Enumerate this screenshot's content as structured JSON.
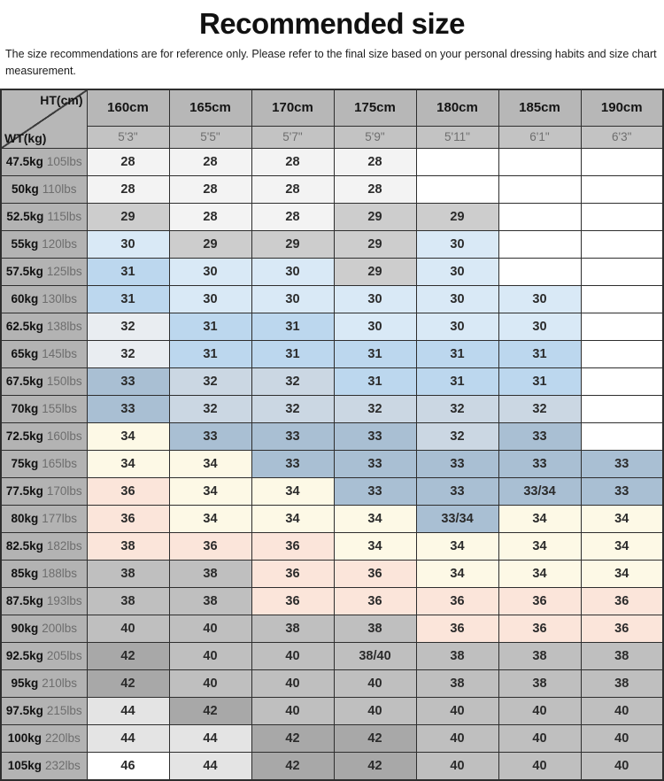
{
  "title": "Recommended size",
  "subtitle": "The size recommendations are for reference only. Please refer to the final size based on your personal dressing habits and size chart measurement.",
  "colors": {
    "w": "#ffffff",
    "f0": "#f3f3f3",
    "gMid": "#cdcdcd",
    "gCell": "#bfbfbf",
    "gDark": "#a8a8a8",
    "g44": "#e4e4e4",
    "blue1": "#d9e9f6",
    "blue2": "#bcd7ee",
    "blue3": "#a9bfd3",
    "blue4": "#cbd7e3",
    "blueGray": "#e9edf1",
    "cream": "#fdf9e6",
    "pink": "#fbe5da"
  },
  "chart_data": {
    "type": "table",
    "title": "Recommended size",
    "corner_top": "HT(cm)",
    "corner_bottom": "WT(kg)",
    "columns_cm": [
      "160cm",
      "165cm",
      "170cm",
      "175cm",
      "180cm",
      "185cm",
      "190cm"
    ],
    "columns_ft": [
      "5'3\"",
      "5'5\"",
      "5'7\"",
      "5'9\"",
      "5'11\"",
      "6'1\"",
      "6'3\""
    ],
    "rows": [
      {
        "kg": "47.5kg",
        "lbs": "105lbs",
        "cells": [
          {
            "v": "28",
            "c": "f0"
          },
          {
            "v": "28",
            "c": "f0"
          },
          {
            "v": "28",
            "c": "f0"
          },
          {
            "v": "28",
            "c": "f0"
          },
          {
            "v": "",
            "c": "w"
          },
          {
            "v": "",
            "c": "w"
          },
          {
            "v": "",
            "c": "w"
          }
        ]
      },
      {
        "kg": "50kg",
        "lbs": "110lbs",
        "cells": [
          {
            "v": "28",
            "c": "f0"
          },
          {
            "v": "28",
            "c": "f0"
          },
          {
            "v": "28",
            "c": "f0"
          },
          {
            "v": "28",
            "c": "f0"
          },
          {
            "v": "",
            "c": "w"
          },
          {
            "v": "",
            "c": "w"
          },
          {
            "v": "",
            "c": "w"
          }
        ]
      },
      {
        "kg": "52.5kg",
        "lbs": "115lbs",
        "cells": [
          {
            "v": "29",
            "c": "gMid"
          },
          {
            "v": "28",
            "c": "f0"
          },
          {
            "v": "28",
            "c": "f0"
          },
          {
            "v": "29",
            "c": "gMid"
          },
          {
            "v": "29",
            "c": "gMid"
          },
          {
            "v": "",
            "c": "w"
          },
          {
            "v": "",
            "c": "w"
          }
        ]
      },
      {
        "kg": "55kg",
        "lbs": "120lbs",
        "cells": [
          {
            "v": "30",
            "c": "blue1"
          },
          {
            "v": "29",
            "c": "gMid"
          },
          {
            "v": "29",
            "c": "gMid"
          },
          {
            "v": "29",
            "c": "gMid"
          },
          {
            "v": "30",
            "c": "blue1"
          },
          {
            "v": "",
            "c": "w"
          },
          {
            "v": "",
            "c": "w"
          }
        ]
      },
      {
        "kg": "57.5kg",
        "lbs": "125lbs",
        "cells": [
          {
            "v": "31",
            "c": "blue2"
          },
          {
            "v": "30",
            "c": "blue1"
          },
          {
            "v": "30",
            "c": "blue1"
          },
          {
            "v": "29",
            "c": "gMid"
          },
          {
            "v": "30",
            "c": "blue1"
          },
          {
            "v": "",
            "c": "w"
          },
          {
            "v": "",
            "c": "w"
          }
        ]
      },
      {
        "kg": "60kg",
        "lbs": "130lbs",
        "cells": [
          {
            "v": "31",
            "c": "blue2"
          },
          {
            "v": "30",
            "c": "blue1"
          },
          {
            "v": "30",
            "c": "blue1"
          },
          {
            "v": "30",
            "c": "blue1"
          },
          {
            "v": "30",
            "c": "blue1"
          },
          {
            "v": "30",
            "c": "blue1"
          },
          {
            "v": "",
            "c": "w"
          }
        ]
      },
      {
        "kg": "62.5kg",
        "lbs": "138lbs",
        "cells": [
          {
            "v": "32",
            "c": "blueGray"
          },
          {
            "v": "31",
            "c": "blue2"
          },
          {
            "v": "31",
            "c": "blue2"
          },
          {
            "v": "30",
            "c": "blue1"
          },
          {
            "v": "30",
            "c": "blue1"
          },
          {
            "v": "30",
            "c": "blue1"
          },
          {
            "v": "",
            "c": "w"
          }
        ]
      },
      {
        "kg": "65kg",
        "lbs": "145lbs",
        "cells": [
          {
            "v": "32",
            "c": "blueGray"
          },
          {
            "v": "31",
            "c": "blue2"
          },
          {
            "v": "31",
            "c": "blue2"
          },
          {
            "v": "31",
            "c": "blue2"
          },
          {
            "v": "31",
            "c": "blue2"
          },
          {
            "v": "31",
            "c": "blue2"
          },
          {
            "v": "",
            "c": "w"
          }
        ]
      },
      {
        "kg": "67.5kg",
        "lbs": "150lbs",
        "cells": [
          {
            "v": "33",
            "c": "blue3"
          },
          {
            "v": "32",
            "c": "blue4"
          },
          {
            "v": "32",
            "c": "blue4"
          },
          {
            "v": "31",
            "c": "blue2"
          },
          {
            "v": "31",
            "c": "blue2"
          },
          {
            "v": "31",
            "c": "blue2"
          },
          {
            "v": "",
            "c": "w"
          }
        ]
      },
      {
        "kg": "70kg",
        "lbs": "155lbs",
        "cells": [
          {
            "v": "33",
            "c": "blue3"
          },
          {
            "v": "32",
            "c": "blue4"
          },
          {
            "v": "32",
            "c": "blue4"
          },
          {
            "v": "32",
            "c": "blue4"
          },
          {
            "v": "32",
            "c": "blue4"
          },
          {
            "v": "32",
            "c": "blue4"
          },
          {
            "v": "",
            "c": "w"
          }
        ]
      },
      {
        "kg": "72.5kg",
        "lbs": "160lbs",
        "cells": [
          {
            "v": "34",
            "c": "cream"
          },
          {
            "v": "33",
            "c": "blue3"
          },
          {
            "v": "33",
            "c": "blue3"
          },
          {
            "v": "33",
            "c": "blue3"
          },
          {
            "v": "32",
            "c": "blue4"
          },
          {
            "v": "33",
            "c": "blue3"
          },
          {
            "v": "",
            "c": "w"
          }
        ]
      },
      {
        "kg": "75kg",
        "lbs": "165lbs",
        "cells": [
          {
            "v": "34",
            "c": "cream"
          },
          {
            "v": "34",
            "c": "cream"
          },
          {
            "v": "33",
            "c": "blue3"
          },
          {
            "v": "33",
            "c": "blue3"
          },
          {
            "v": "33",
            "c": "blue3"
          },
          {
            "v": "33",
            "c": "blue3"
          },
          {
            "v": "33",
            "c": "blue3"
          }
        ]
      },
      {
        "kg": "77.5kg",
        "lbs": "170lbs",
        "cells": [
          {
            "v": "36",
            "c": "pink"
          },
          {
            "v": "34",
            "c": "cream"
          },
          {
            "v": "34",
            "c": "cream"
          },
          {
            "v": "33",
            "c": "blue3"
          },
          {
            "v": "33",
            "c": "blue3"
          },
          {
            "v": "33/34",
            "c": "blue3"
          },
          {
            "v": "33",
            "c": "blue3"
          }
        ]
      },
      {
        "kg": "80kg",
        "lbs": "177lbs",
        "cells": [
          {
            "v": "36",
            "c": "pink"
          },
          {
            "v": "34",
            "c": "cream"
          },
          {
            "v": "34",
            "c": "cream"
          },
          {
            "v": "34",
            "c": "cream"
          },
          {
            "v": "33/34",
            "c": "blue3"
          },
          {
            "v": "34",
            "c": "cream"
          },
          {
            "v": "34",
            "c": "cream"
          }
        ]
      },
      {
        "kg": "82.5kg",
        "lbs": "182lbs",
        "cells": [
          {
            "v": "38",
            "c": "pink"
          },
          {
            "v": "36",
            "c": "pink"
          },
          {
            "v": "36",
            "c": "pink"
          },
          {
            "v": "34",
            "c": "cream"
          },
          {
            "v": "34",
            "c": "cream"
          },
          {
            "v": "34",
            "c": "cream"
          },
          {
            "v": "34",
            "c": "cream"
          }
        ]
      },
      {
        "kg": "85kg",
        "lbs": "188lbs",
        "cells": [
          {
            "v": "38",
            "c": "gCell"
          },
          {
            "v": "38",
            "c": "gCell"
          },
          {
            "v": "36",
            "c": "pink"
          },
          {
            "v": "36",
            "c": "pink"
          },
          {
            "v": "34",
            "c": "cream"
          },
          {
            "v": "34",
            "c": "cream"
          },
          {
            "v": "34",
            "c": "cream"
          }
        ]
      },
      {
        "kg": "87.5kg",
        "lbs": "193lbs",
        "cells": [
          {
            "v": "38",
            "c": "gCell"
          },
          {
            "v": "38",
            "c": "gCell"
          },
          {
            "v": "36",
            "c": "pink"
          },
          {
            "v": "36",
            "c": "pink"
          },
          {
            "v": "36",
            "c": "pink"
          },
          {
            "v": "36",
            "c": "pink"
          },
          {
            "v": "36",
            "c": "pink"
          }
        ]
      },
      {
        "kg": "90kg",
        "lbs": "200lbs",
        "cells": [
          {
            "v": "40",
            "c": "gCell"
          },
          {
            "v": "40",
            "c": "gCell"
          },
          {
            "v": "38",
            "c": "gCell"
          },
          {
            "v": "38",
            "c": "gCell"
          },
          {
            "v": "36",
            "c": "pink"
          },
          {
            "v": "36",
            "c": "pink"
          },
          {
            "v": "36",
            "c": "pink"
          }
        ]
      },
      {
        "kg": "92.5kg",
        "lbs": "205lbs",
        "cells": [
          {
            "v": "42",
            "c": "gDark"
          },
          {
            "v": "40",
            "c": "gCell"
          },
          {
            "v": "40",
            "c": "gCell"
          },
          {
            "v": "38/40",
            "c": "gCell"
          },
          {
            "v": "38",
            "c": "gCell"
          },
          {
            "v": "38",
            "c": "gCell"
          },
          {
            "v": "38",
            "c": "gCell"
          }
        ]
      },
      {
        "kg": "95kg",
        "lbs": "210lbs",
        "cells": [
          {
            "v": "42",
            "c": "gDark"
          },
          {
            "v": "40",
            "c": "gCell"
          },
          {
            "v": "40",
            "c": "gCell"
          },
          {
            "v": "40",
            "c": "gCell"
          },
          {
            "v": "38",
            "c": "gCell"
          },
          {
            "v": "38",
            "c": "gCell"
          },
          {
            "v": "38",
            "c": "gCell"
          }
        ]
      },
      {
        "kg": "97.5kg",
        "lbs": "215lbs",
        "cells": [
          {
            "v": "44",
            "c": "g44"
          },
          {
            "v": "42",
            "c": "gDark"
          },
          {
            "v": "40",
            "c": "gCell"
          },
          {
            "v": "40",
            "c": "gCell"
          },
          {
            "v": "40",
            "c": "gCell"
          },
          {
            "v": "40",
            "c": "gCell"
          },
          {
            "v": "40",
            "c": "gCell"
          }
        ]
      },
      {
        "kg": "100kg",
        "lbs": "220lbs",
        "cells": [
          {
            "v": "44",
            "c": "g44"
          },
          {
            "v": "44",
            "c": "g44"
          },
          {
            "v": "42",
            "c": "gDark"
          },
          {
            "v": "42",
            "c": "gDark"
          },
          {
            "v": "40",
            "c": "gCell"
          },
          {
            "v": "40",
            "c": "gCell"
          },
          {
            "v": "40",
            "c": "gCell"
          }
        ]
      },
      {
        "kg": "105kg",
        "lbs": "232lbs",
        "cells": [
          {
            "v": "46",
            "c": "w"
          },
          {
            "v": "44",
            "c": "g44"
          },
          {
            "v": "42",
            "c": "gDark"
          },
          {
            "v": "42",
            "c": "gDark"
          },
          {
            "v": "40",
            "c": "gCell"
          },
          {
            "v": "40",
            "c": "gCell"
          },
          {
            "v": "40",
            "c": "gCell"
          }
        ]
      }
    ]
  }
}
